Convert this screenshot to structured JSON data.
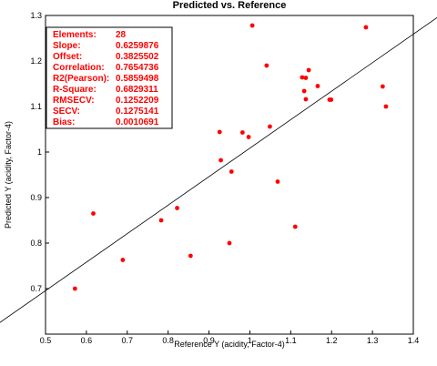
{
  "chart_data": {
    "type": "scatter",
    "title": "Predicted vs. Reference",
    "xlabel": "Reference Y (acidity, Factor-4)",
    "ylabel": "Predicted Y (acidity, Factor-4)",
    "xlim": [
      0.5,
      1.4
    ],
    "ylim": [
      0.6,
      1.3
    ],
    "x_ticks": [
      "0.5",
      "0.6",
      "0.7",
      "0.8",
      "0.9",
      "1",
      "1.1",
      "1.2",
      "1.3",
      "1.4"
    ],
    "y_ticks": [
      "0.7",
      "0.8",
      "0.9",
      "1",
      "1.1",
      "1.2",
      "1.3"
    ],
    "point_color": "#ff0000",
    "line_color": "#000000",
    "regression_line": {
      "slope": 0.6259876,
      "offset": 0.3825502
    },
    "stats": [
      {
        "label": "Elements:",
        "value": "28"
      },
      {
        "label": "Slope:",
        "value": "0.6259876"
      },
      {
        "label": "Offset:",
        "value": "0.3825502"
      },
      {
        "label": "Correlation:",
        "value": "0.7654736"
      },
      {
        "label": "R2(Pearson):",
        "value": "0.5859498"
      },
      {
        "label": "R-Square:",
        "value": "0.6829311"
      },
      {
        "label": "RMSECV:",
        "value": "0.1252209"
      },
      {
        "label": "SECV:",
        "value": "0.1275141"
      },
      {
        "label": "Bias:",
        "value": "0.0010691"
      }
    ],
    "points": [
      {
        "x": 0.572,
        "y": 0.7
      },
      {
        "x": 0.617,
        "y": 0.865
      },
      {
        "x": 0.689,
        "y": 0.763
      },
      {
        "x": 0.783,
        "y": 0.85
      },
      {
        "x": 0.822,
        "y": 0.877
      },
      {
        "x": 0.855,
        "y": 0.772
      },
      {
        "x": 0.926,
        "y": 1.044
      },
      {
        "x": 0.929,
        "y": 0.982
      },
      {
        "x": 0.95,
        "y": 0.8
      },
      {
        "x": 0.955,
        "y": 0.957
      },
      {
        "x": 0.982,
        "y": 1.043
      },
      {
        "x": 0.997,
        "y": 1.033
      },
      {
        "x": 1.006,
        "y": 1.278
      },
      {
        "x": 1.041,
        "y": 1.19
      },
      {
        "x": 1.049,
        "y": 1.056
      },
      {
        "x": 1.068,
        "y": 0.935
      },
      {
        "x": 1.111,
        "y": 0.836
      },
      {
        "x": 1.128,
        "y": 1.164
      },
      {
        "x": 1.133,
        "y": 1.134
      },
      {
        "x": 1.137,
        "y": 1.163
      },
      {
        "x": 1.137,
        "y": 1.116
      },
      {
        "x": 1.144,
        "y": 1.18
      },
      {
        "x": 1.166,
        "y": 1.145
      },
      {
        "x": 1.195,
        "y": 1.115
      },
      {
        "x": 1.199,
        "y": 1.115
      },
      {
        "x": 1.284,
        "y": 1.274
      },
      {
        "x": 1.325,
        "y": 1.144
      },
      {
        "x": 1.333,
        "y": 1.1
      }
    ]
  }
}
